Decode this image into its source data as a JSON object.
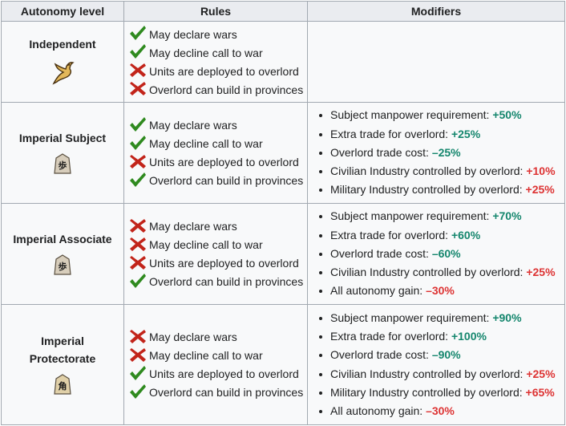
{
  "headers": {
    "level": "Autonomy level",
    "rules": "Rules",
    "modifiers": "Modifiers"
  },
  "colors": {
    "check": "#2f8a1f",
    "cross": "#c2241a",
    "positive": "#14866d",
    "negative": "#d33"
  },
  "rows": [
    {
      "level": "Independent",
      "icon": "dove-icon",
      "rules": [
        {
          "label": "May declare wars",
          "allowed": true
        },
        {
          "label": "May decline call to war",
          "allowed": true
        },
        {
          "label": "Units are deployed to overlord",
          "allowed": false
        },
        {
          "label": "Overlord can build in provinces",
          "allowed": false
        }
      ],
      "modifiers": []
    },
    {
      "level": "Imperial Subject",
      "icon": "shogi-pawn-icon",
      "rules": [
        {
          "label": "May declare wars",
          "allowed": true
        },
        {
          "label": "May decline call to war",
          "allowed": true
        },
        {
          "label": "Units are deployed to overlord",
          "allowed": false
        },
        {
          "label": "Overlord can build in provinces",
          "allowed": true
        }
      ],
      "modifiers": [
        {
          "label": "Subject manpower requirement: ",
          "value": "+50%",
          "tone": "pos"
        },
        {
          "label": "Extra trade for overlord: ",
          "value": "+25%",
          "tone": "pos"
        },
        {
          "label": "Overlord trade cost: ",
          "value": "–25%",
          "tone": "pos"
        },
        {
          "label": "Civilian Industry controlled by overlord: ",
          "value": "+10%",
          "tone": "neg"
        },
        {
          "label": "Military Industry controlled by overlord: ",
          "value": "+25%",
          "tone": "neg"
        }
      ]
    },
    {
      "level": "Imperial Associate",
      "icon": "shogi-pawn-icon",
      "rules": [
        {
          "label": "May declare wars",
          "allowed": false
        },
        {
          "label": "May decline call to war",
          "allowed": false
        },
        {
          "label": "Units are deployed to overlord",
          "allowed": false
        },
        {
          "label": "Overlord can build in provinces",
          "allowed": true
        }
      ],
      "modifiers": [
        {
          "label": "Subject manpower requirement: ",
          "value": "+70%",
          "tone": "pos"
        },
        {
          "label": "Extra trade for overlord: ",
          "value": "+60%",
          "tone": "pos"
        },
        {
          "label": "Overlord trade cost: ",
          "value": "–60%",
          "tone": "pos"
        },
        {
          "label": "Civilian Industry controlled by overlord: ",
          "value": "+25%",
          "tone": "neg"
        },
        {
          "label": "All autonomy gain: ",
          "value": "–30%",
          "tone": "neg"
        }
      ]
    },
    {
      "level": "Imperial Protectorate",
      "icon": "shogi-bishop-icon",
      "rules": [
        {
          "label": "May declare wars",
          "allowed": false
        },
        {
          "label": "May decline call to war",
          "allowed": false
        },
        {
          "label": "Units are deployed to overlord",
          "allowed": true
        },
        {
          "label": "Overlord can build in provinces",
          "allowed": true
        }
      ],
      "modifiers": [
        {
          "label": "Subject manpower requirement: ",
          "value": "+90%",
          "tone": "pos"
        },
        {
          "label": "Extra trade for overlord: ",
          "value": "+100%",
          "tone": "pos"
        },
        {
          "label": "Overlord trade cost: ",
          "value": "–90%",
          "tone": "pos"
        },
        {
          "label": "Civilian Industry controlled by overlord: ",
          "value": "+25%",
          "tone": "neg"
        },
        {
          "label": "Military Industry controlled by overlord: ",
          "value": "+65%",
          "tone": "neg"
        },
        {
          "label": "All autonomy gain: ",
          "value": "–30%",
          "tone": "neg"
        }
      ]
    }
  ]
}
